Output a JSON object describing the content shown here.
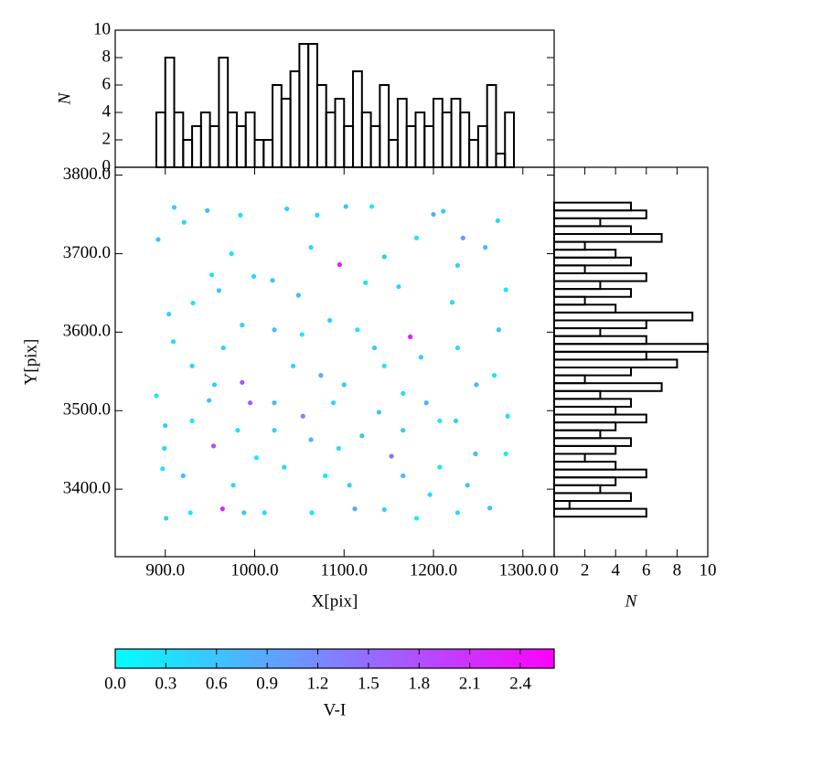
{
  "chart_data": [
    {
      "type": "histogram",
      "orientation": "vertical",
      "color": "#000000",
      "bins": [
        890,
        900,
        910,
        920,
        930,
        940,
        950,
        960,
        970,
        980,
        990,
        1000,
        1010,
        1020,
        1030,
        1040,
        1050,
        1060,
        1070,
        1080,
        1090,
        1100,
        1110,
        1120,
        1130,
        1140,
        1150,
        1160,
        1170,
        1180,
        1190,
        1200,
        1210,
        1220,
        1230,
        1240,
        1250,
        1260,
        1270,
        1280,
        1290
      ],
      "values": [
        4,
        8,
        4,
        2,
        3,
        4,
        3,
        8,
        4,
        3,
        4,
        2,
        2,
        6,
        5,
        7,
        9,
        9,
        6,
        4,
        5,
        3,
        7,
        4,
        3,
        6,
        2,
        5,
        3,
        4,
        3,
        5,
        4,
        5,
        4,
        2,
        3,
        6,
        1,
        4
      ],
      "xlim": [
        844,
        1335
      ],
      "ylim": [
        0,
        10
      ],
      "yticks": [
        0,
        2,
        4,
        6,
        8,
        10
      ],
      "ylabel": "N"
    },
    {
      "type": "scatter",
      "xlabel": "X[pix]",
      "ylabel": "Y[pix]",
      "xlim": [
        844,
        1335
      ],
      "ylim": [
        3314,
        3810
      ],
      "xticks": [
        {
          "value": 900,
          "label": "900.0"
        },
        {
          "value": 1000,
          "label": "1000.0"
        },
        {
          "value": 1100,
          "label": "1100.0"
        },
        {
          "value": 1200,
          "label": "1200.0"
        },
        {
          "value": 1300,
          "label": "1300.0"
        }
      ],
      "yticks": [
        {
          "value": 3400,
          "label": "3400.0"
        },
        {
          "value": 3500,
          "label": "3500.0"
        },
        {
          "value": 3600,
          "label": "3600.0"
        },
        {
          "value": 3700,
          "label": "3700.0"
        },
        {
          "value": 3800,
          "label": "3800.0"
        }
      ],
      "x": [
        910,
        892,
        921,
        947,
        984,
        1036,
        1070,
        1102,
        1131,
        1200,
        1211,
        1233,
        1272,
        974,
        1020,
        1095,
        904,
        931,
        960,
        999,
        1049,
        1124,
        1161,
        1221,
        1281,
        1273,
        1174,
        909,
        965,
        986,
        995,
        954,
        964,
        1054,
        1153,
        890,
        900,
        930,
        949,
        899,
        897,
        901,
        928,
        988,
        1011,
        1064,
        1112,
        1145,
        1181,
        1227,
        1263,
        1283,
        1247,
        1281,
        1225,
        1207,
        1192,
        1166,
        1134,
        1115,
        1084,
        1053,
        1022,
        1043,
        1074,
        1100,
        1145,
        1186,
        1227,
        1248,
        1268,
        1022,
        1063,
        1094,
        1120,
        1033,
        1079,
        1106,
        1166,
        1207,
        1238,
        930,
        955,
        981,
        920,
        976,
        1002,
        1166,
        1196,
        1022,
        1088,
        1139,
        952,
        986,
        1063,
        1145,
        1181,
        1227,
        1258
      ],
      "values": [
        3759,
        3718,
        3740,
        3755,
        3749,
        3757,
        3749,
        3760,
        3760,
        3750,
        3754,
        3720,
        3742,
        3700,
        3666,
        3686,
        3623,
        3637,
        3653,
        3671,
        3647,
        3663,
        3658,
        3638,
        3654,
        3603,
        3594,
        3588,
        3580,
        3536,
        3510,
        3455,
        3375,
        3493,
        3442,
        3519,
        3481,
        3487,
        3513,
        3452,
        3426,
        3363,
        3370,
        3370,
        3370,
        3370,
        3375,
        3374,
        3363,
        3370,
        3376,
        3493,
        3445,
        3445,
        3487,
        3487,
        3510,
        3522,
        3580,
        3603,
        3615,
        3597,
        3603,
        3557,
        3545,
        3533,
        3557,
        3568,
        3580,
        3533,
        3545,
        3475,
        3463,
        3452,
        3468,
        3428,
        3417,
        3405,
        3417,
        3428,
        3405,
        3557,
        3533,
        3475,
        3417,
        3405,
        3440,
        3475,
        3393,
        3510,
        3510,
        3498,
        3673,
        3609,
        3708,
        3696,
        3720,
        3685,
        3708
      ],
      "c": [
        0.5,
        0.6,
        0.4,
        0.7,
        0.3,
        0.5,
        0.4,
        0.6,
        0.2,
        0.9,
        0.5,
        1.1,
        0.4,
        0.3,
        0.6,
        2.3,
        0.5,
        0.3,
        0.6,
        0.4,
        0.7,
        0.3,
        0.5,
        0.4,
        0.2,
        0.6,
        2.3,
        0.4,
        0.5,
        1.8,
        1.6,
        1.8,
        2.2,
        1.3,
        1.5,
        0.3,
        0.5,
        0.2,
        0.6,
        0.4,
        0.3,
        0.5,
        0.2,
        0.6,
        0.4,
        0.3,
        0.9,
        0.5,
        0.2,
        0.4,
        0.6,
        0.3,
        0.7,
        0.2,
        0.5,
        0.3,
        0.8,
        0.4,
        0.6,
        0.3,
        0.5,
        0.2,
        0.7,
        0.4,
        0.9,
        0.6,
        0.3,
        0.5,
        0.4,
        0.7,
        0.3,
        0.5,
        0.8,
        0.3,
        0.6,
        0.4,
        0.2,
        0.5,
        0.7,
        0.3,
        0.6,
        0.4,
        0.5,
        0.3,
        0.6,
        0.4,
        0.2,
        0.5,
        0.3,
        0.7,
        0.4,
        0.6,
        0.3,
        0.5,
        0.4,
        0.6,
        0.3,
        0.5,
        0.7
      ],
      "colormap": "cool",
      "colorbar": {
        "label": "V-I",
        "lim": [
          0,
          2.6
        ],
        "ticks": [
          {
            "value": 0,
            "label": "0.0"
          },
          0.3,
          0.6,
          0.9,
          1.2,
          1.5,
          1.8,
          2.1,
          2.4
        ]
      }
    },
    {
      "type": "histogram",
      "orientation": "horizontal",
      "color": "#000000",
      "bins": [
        3365,
        3375,
        3385,
        3395,
        3405,
        3415,
        3425,
        3435,
        3445,
        3455,
        3465,
        3475,
        3485,
        3495,
        3505,
        3515,
        3525,
        3535,
        3545,
        3555,
        3565,
        3575,
        3585,
        3595,
        3605,
        3615,
        3625,
        3635,
        3645,
        3655,
        3665,
        3675,
        3685,
        3695,
        3705,
        3715,
        3725,
        3735,
        3745,
        3755,
        3765
      ],
      "values": [
        6,
        1,
        5,
        3,
        4,
        6,
        4,
        2,
        4,
        5,
        3,
        4,
        6,
        4,
        5,
        3,
        7,
        2,
        5,
        8,
        6,
        10,
        6,
        3,
        6,
        9,
        4,
        2,
        5,
        3,
        6,
        2,
        5,
        4,
        2,
        7,
        5,
        3,
        6,
        5
      ],
      "ylim": [
        3314,
        3810
      ],
      "xlim": [
        0,
        10
      ],
      "xticks": [
        0,
        2,
        4,
        6,
        8,
        10
      ],
      "xlabel": "N"
    }
  ]
}
